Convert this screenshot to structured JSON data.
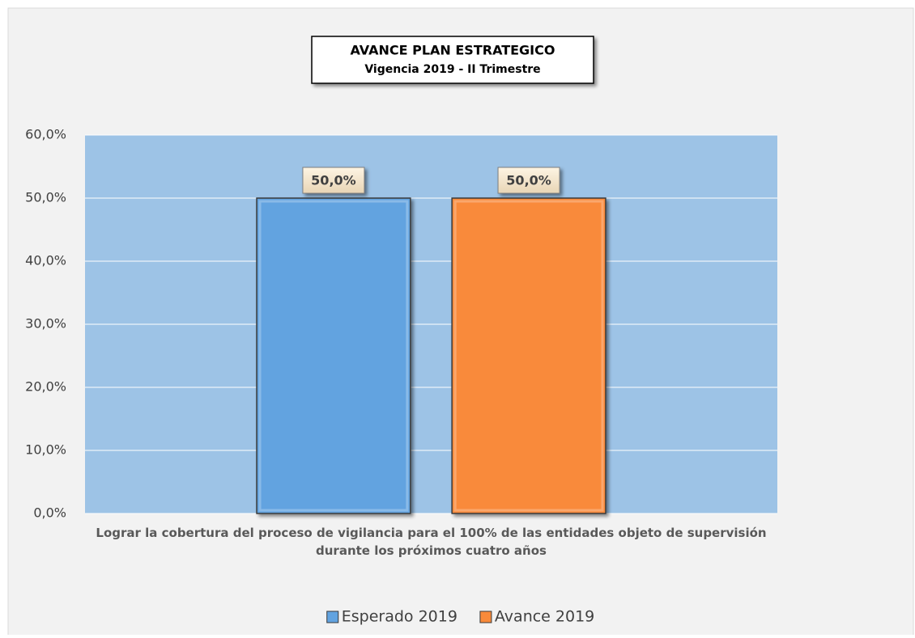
{
  "chart_data": {
    "type": "bar",
    "title": "AVANCE PLAN ESTRATEGICO",
    "subtitle": "Vigencia 2019 - II Trimestre",
    "categories": [
      "Lograr la cobertura del proceso de vigilancia para el 100% de las entidades objeto de supervisión durante los próximos cuatro años"
    ],
    "series": [
      {
        "name": "Esperado 2019",
        "color": "#62a3e0",
        "values": [
          50
        ],
        "value_labels": [
          "50,0%"
        ]
      },
      {
        "name": "Avance 2019",
        "color": "#f98a3a",
        "values": [
          50
        ],
        "value_labels": [
          "50,0%"
        ]
      }
    ],
    "ylim": [
      0,
      60
    ],
    "yticks": [
      {
        "value": 0,
        "label": "0,0%"
      },
      {
        "value": 10,
        "label": "10,0%"
      },
      {
        "value": 20,
        "label": "20,0%"
      },
      {
        "value": 30,
        "label": "30,0%"
      },
      {
        "value": 40,
        "label": "40,0%"
      },
      {
        "value": 50,
        "label": "50,0%"
      },
      {
        "value": 60,
        "label": "60,0%"
      }
    ],
    "grid": true,
    "legend": "bottom"
  }
}
